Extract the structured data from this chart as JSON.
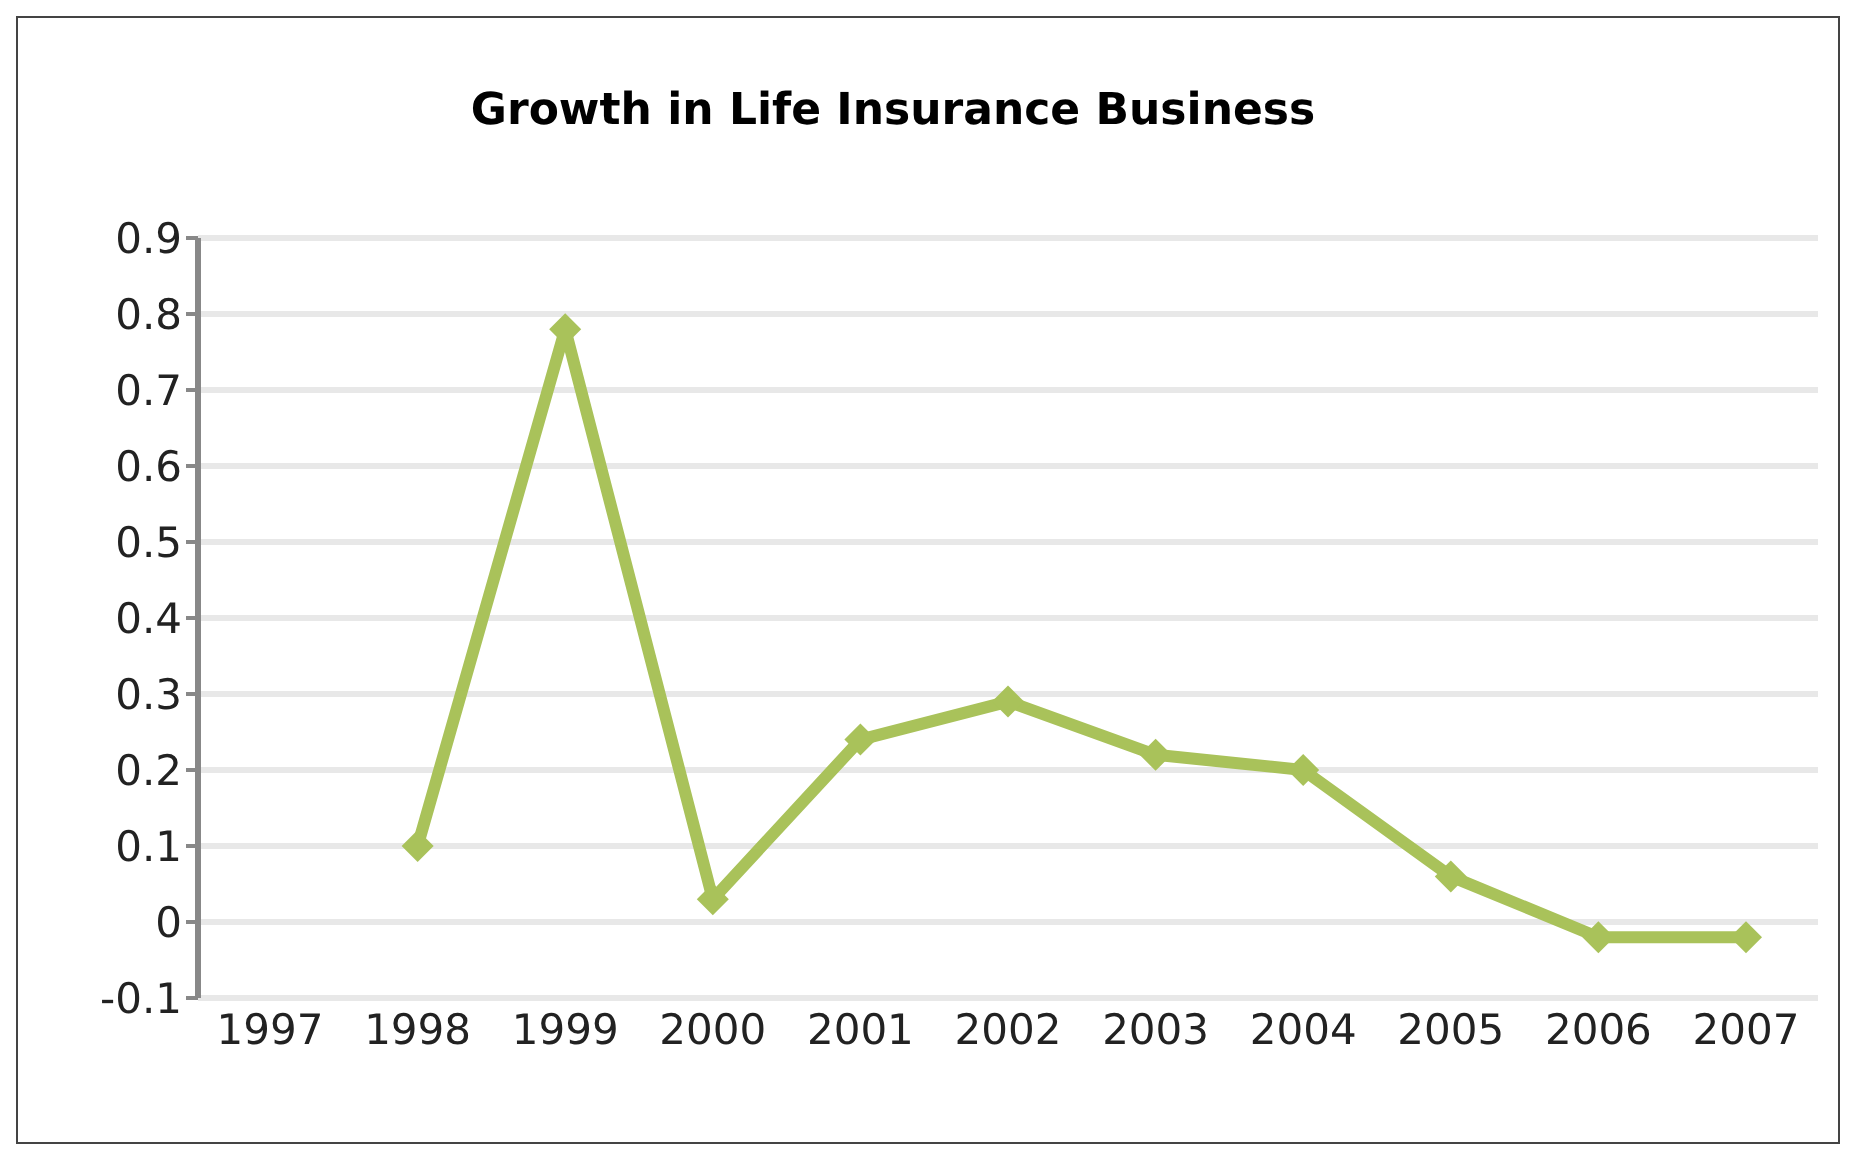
{
  "chart_data": {
    "type": "line",
    "title": "Growth in Life Insurance Business",
    "categories": [
      "1997",
      "1998",
      "1999",
      "2000",
      "2001",
      "2002",
      "2003",
      "2004",
      "2005",
      "2006",
      "2007"
    ],
    "series": [
      {
        "color": "#a9c25a",
        "values": [
          null,
          0.1,
          0.78,
          0.03,
          0.24,
          0.29,
          0.22,
          0.2,
          0.06,
          -0.02,
          -0.02
        ]
      }
    ],
    "ylim": [
      -0.1,
      0.9
    ],
    "yticks": [
      -0.1,
      0,
      0.1,
      0.2,
      0.3,
      0.4,
      0.5,
      0.6,
      0.7,
      0.8,
      0.9
    ],
    "grid": "y",
    "marker": "diamond",
    "line_style": "solid",
    "legend": false
  }
}
